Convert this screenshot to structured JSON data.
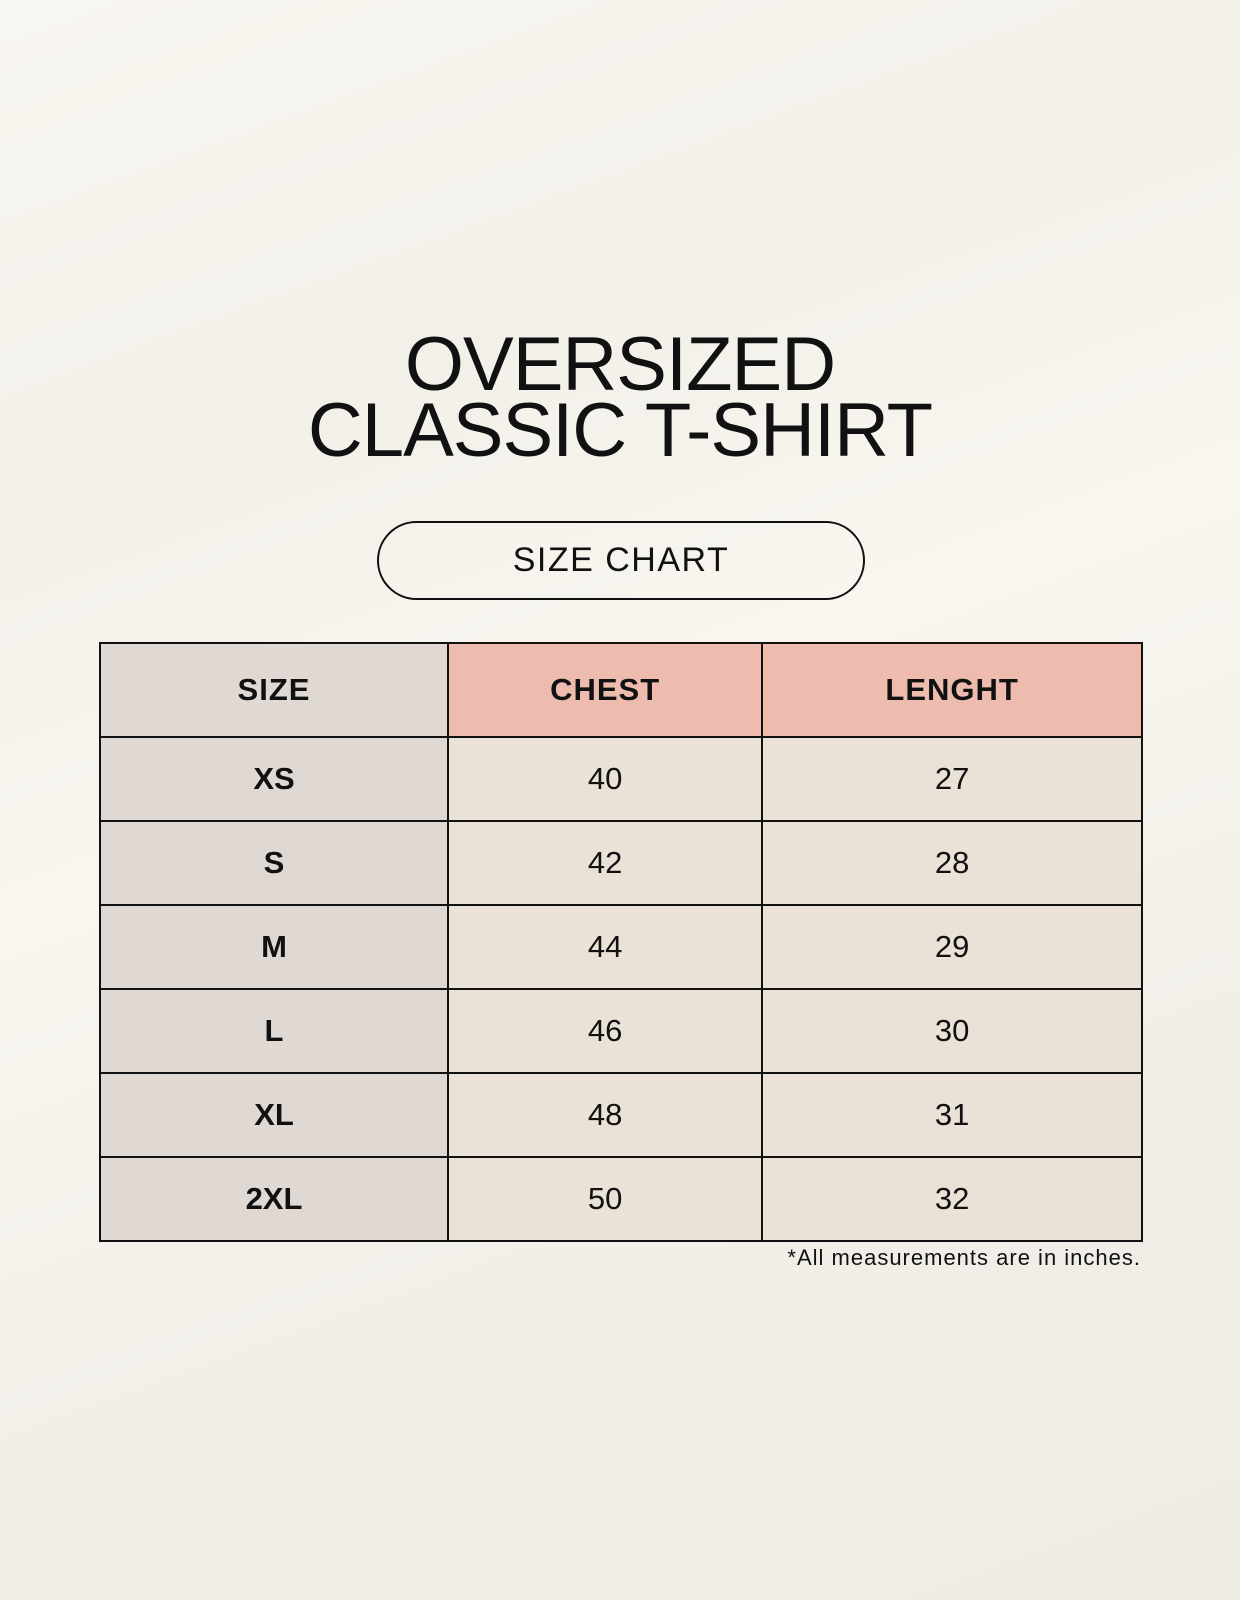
{
  "title": {
    "line1": "OVERSIZED",
    "line2": "CLASSIC T-SHIRT"
  },
  "badge": "SIZE CHART",
  "table": {
    "headers": [
      "SIZE",
      "CHEST",
      "LENGHT"
    ],
    "rows": [
      [
        "XS",
        "40",
        "27"
      ],
      [
        "S",
        "42",
        "28"
      ],
      [
        "M",
        "44",
        "29"
      ],
      [
        "L",
        "46",
        "30"
      ],
      [
        "XL",
        "48",
        "31"
      ],
      [
        "2XL",
        "50",
        "32"
      ]
    ]
  },
  "footnote": "*All measurements are in inches.",
  "colors": {
    "size_column": "#e0d9d3",
    "header_accent": "#edbcae",
    "value_cells": "#eae2d7"
  }
}
